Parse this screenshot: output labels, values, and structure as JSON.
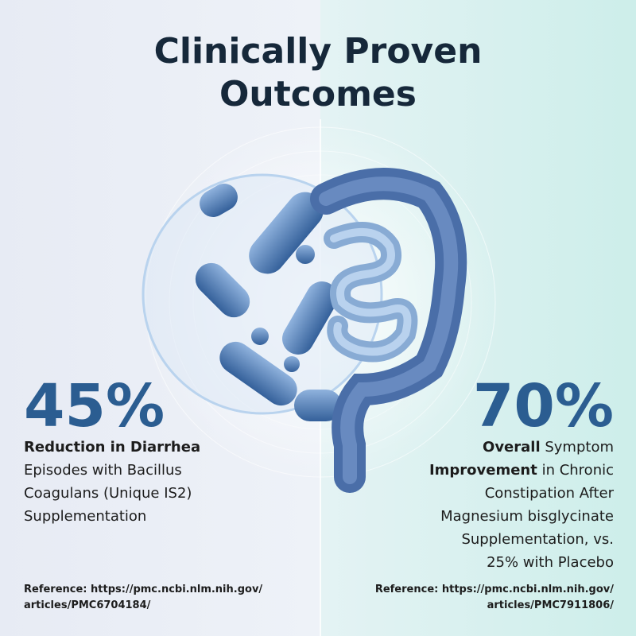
{
  "header": {
    "title": "Clinically Proven Outcomes"
  },
  "left": {
    "stat": "45%",
    "lines": [
      [
        {
          "text": "Reduction in Diarrhea",
          "bold": true
        }
      ],
      [
        {
          "text": "Episodes with Bacillus"
        }
      ],
      [
        {
          "text": "Coagulans (Unique IS2)"
        }
      ],
      [
        {
          "text": "Supplementation"
        }
      ]
    ],
    "reference": [
      "Reference: https://pmc.ncbi.nlm.nih.gov/",
      "articles/PMC6704184/"
    ]
  },
  "right": {
    "stat": "70%",
    "lines": [
      [
        {
          "text": "Overall",
          "bold": true
        },
        {
          "text": " Symptom"
        }
      ],
      [
        {
          "text": "Improvement",
          "bold": true
        },
        {
          "text": " in Chronic"
        }
      ],
      [
        {
          "text": "Constipation After"
        }
      ],
      [
        {
          "text": "Magnesium bisglycinate"
        }
      ],
      [
        {
          "text": "Supplementation, vs."
        }
      ],
      [
        {
          "text": "25% with Placebo"
        }
      ]
    ],
    "reference": [
      "Reference: https://pmc.ncbi.nlm.nih.gov/",
      "articles/PMC7911806/"
    ]
  }
}
